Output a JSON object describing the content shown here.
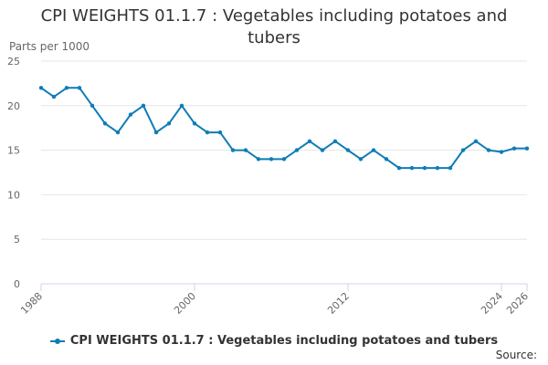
{
  "chart_data": {
    "type": "line",
    "title_line1": "CPI WEIGHTS 01.1.7 : Vegetables including potatoes and",
    "title_line2": "tubers",
    "ylabel": "Parts per 1000",
    "xlim": [
      1988,
      2026
    ],
    "ylim": [
      0,
      25
    ],
    "yticks": [
      0,
      5,
      10,
      15,
      20,
      25
    ],
    "xticks": [
      "1988",
      "2000",
      "2012",
      "2024",
      "2026"
    ],
    "grid": true,
    "legend_position": "bottom",
    "series": [
      {
        "name": "CPI WEIGHTS 01.1.7 : Vegetables including potatoes and tubers",
        "color": "#0f7cb6",
        "x": [
          1988,
          1989,
          1990,
          1991,
          1992,
          1993,
          1994,
          1995,
          1996,
          1997,
          1998,
          1999,
          2000,
          2001,
          2002,
          2003,
          2004,
          2005,
          2006,
          2007,
          2008,
          2009,
          2010,
          2011,
          2012,
          2013,
          2014,
          2015,
          2016,
          2017,
          2018,
          2019,
          2020,
          2021,
          2022,
          2023,
          2024,
          2025,
          2026
        ],
        "values": [
          22,
          21,
          22,
          22,
          20,
          18,
          17,
          19,
          20,
          17,
          18,
          20,
          18,
          17,
          17,
          15,
          15,
          14,
          14,
          14,
          15,
          16,
          15,
          16,
          15,
          14,
          15,
          14,
          13,
          13,
          13,
          13,
          13,
          15,
          16,
          15,
          14.8,
          15.2,
          15.2
        ]
      }
    ]
  },
  "source_label": "Source:"
}
